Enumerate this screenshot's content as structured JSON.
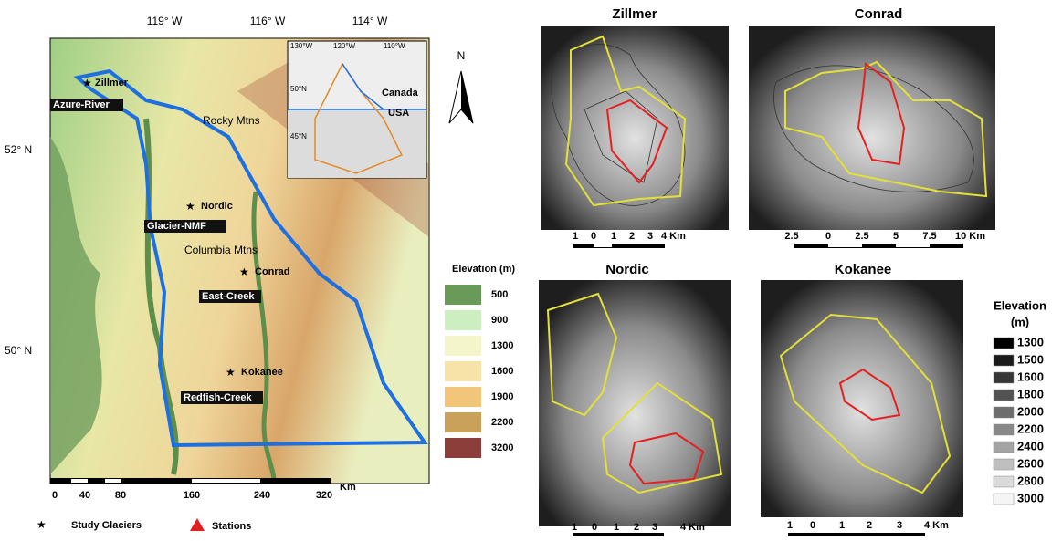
{
  "map": {
    "longitudes": [
      "119° W",
      "116° W",
      "114° W"
    ],
    "latitudes": [
      "52° N",
      "50° N"
    ],
    "places": {
      "zillmer": "Zillmer",
      "azure": "Azure-River",
      "rocky": "Rocky Mtns",
      "nordic": "Nordic",
      "glacier": "Glacier-NMF",
      "columbia": "Columbia Mtns",
      "conrad": "Conrad",
      "east": "East-Creek",
      "kokanee": "Kokanee",
      "redfish": "Redfish-Creek"
    },
    "inset": {
      "lons": [
        "130°W",
        "120°W",
        "110°W"
      ],
      "lats": [
        "50°N",
        "45°N"
      ],
      "canada": "Canada",
      "usa": "USA"
    },
    "north": "N",
    "elevation_legend": {
      "title": "Elevation (m)",
      "items": [
        "500",
        "900",
        "1300",
        "1600",
        "1900",
        "2200",
        "3200"
      ]
    },
    "scale": {
      "labels": [
        "0",
        "40",
        "80",
        "160",
        "240",
        "320"
      ],
      "unit": "Km"
    },
    "symbols": {
      "glaciers": "Study Glaciers",
      "stations": "Stations"
    }
  },
  "panels": [
    {
      "title": "Zillmer",
      "scale": [
        "1",
        "0",
        "1",
        "2",
        "3",
        "4 Km"
      ]
    },
    {
      "title": "Conrad",
      "scale": [
        "2.5",
        "0",
        "2.5",
        "5",
        "7.5",
        "10 Km"
      ]
    },
    {
      "title": "Nordic",
      "scale": [
        "1",
        "0",
        "1",
        "2",
        "3",
        "4 Km"
      ]
    },
    {
      "title": "Kokanee",
      "scale": [
        "1",
        "0",
        "1",
        "2",
        "3",
        "4 Km"
      ]
    }
  ],
  "gray_legend": {
    "title": "Elevation",
    "unit": "(m)",
    "items": [
      "1300",
      "1500",
      "1600",
      "1800",
      "2000",
      "2200",
      "2400",
      "2600",
      "2800",
      "3000"
    ]
  }
}
